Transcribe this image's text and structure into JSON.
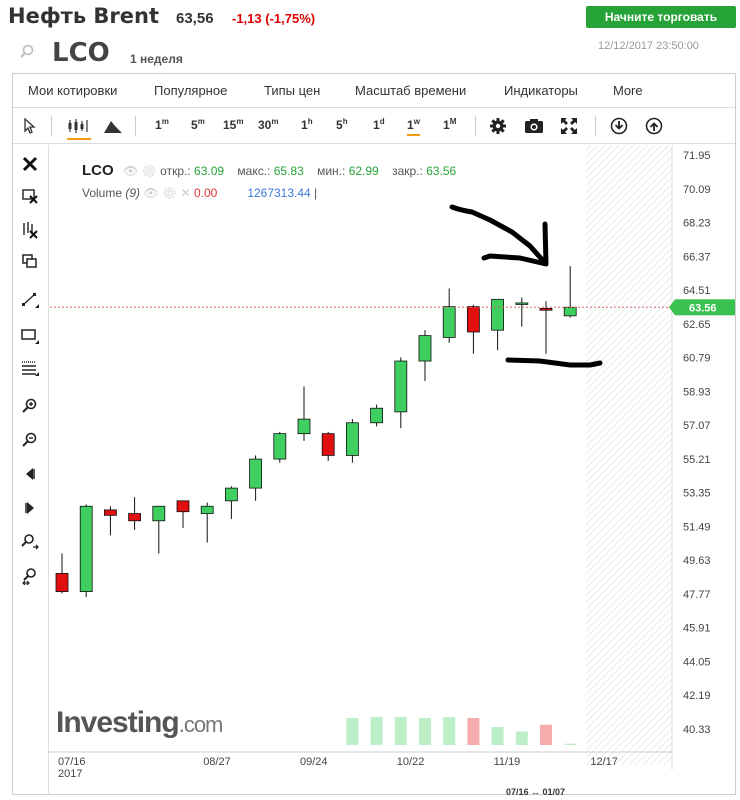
{
  "header": {
    "title": "Нефть Brent",
    "price": "63,56",
    "change": "-1,13 (-1,75%)",
    "trade_label": "Начните торговать"
  },
  "symbol_bar": {
    "symbol": "LCO",
    "interval": "1 неделя",
    "datetime": "12/12/2017 23:50:00"
  },
  "menu": {
    "items": [
      "Мои котировки",
      "Популярное",
      "Типы цен",
      "Масштаб времени",
      "Индикаторы",
      "More"
    ]
  },
  "toolbar": {
    "intervals": [
      {
        "label": "1",
        "sup": "m"
      },
      {
        "label": "5",
        "sup": "m"
      },
      {
        "label": "15",
        "sup": "m"
      },
      {
        "label": "30",
        "sup": "m"
      },
      {
        "label": "1",
        "sup": "h"
      },
      {
        "label": "5",
        "sup": "h"
      },
      {
        "label": "1",
        "sup": "d"
      },
      {
        "label": "1",
        "sup": "w"
      },
      {
        "label": "1",
        "sup": "M"
      }
    ],
    "active_interval": "1w"
  },
  "legend": {
    "symbol": "LCO",
    "open_label": "откр.:",
    "open": "63.09",
    "high_label": "макс.:",
    "high": "65.83",
    "low_label": "мин.:",
    "low": "62.99",
    "close_label": "закр.:",
    "close": "63.56",
    "volume_label": "Volume",
    "volume_period": "(9)",
    "volume_value": "0.00",
    "volume_ma": "1267313.44"
  },
  "watermark": {
    "brand": "Investing",
    "suffix": ".com"
  },
  "range_label": "07/16 ↔ 01/07",
  "colors": {
    "up": "#3ecf60",
    "down": "#e01010",
    "trade": "#26a337",
    "price_tag": "#39c24f"
  },
  "chart_data": {
    "type": "candlestick",
    "ylim": [
      40.33,
      71.95
    ],
    "y_ticks": [
      "71.95",
      "70.09",
      "68.23",
      "66.37",
      "64.51",
      "62.65",
      "60.79",
      "58.93",
      "57.07",
      "55.21",
      "53.35",
      "51.49",
      "49.63",
      "47.77",
      "45.91",
      "44.05",
      "42.19",
      "40.33"
    ],
    "x_ticks": [
      {
        "label": "07/16",
        "sub": "2017",
        "index": 0
      },
      {
        "label": "08/27",
        "index": 6
      },
      {
        "label": "09/24",
        "index": 10
      },
      {
        "label": "10/22",
        "index": 14
      },
      {
        "label": "11/19",
        "index": 18
      },
      {
        "label": "12/17",
        "index": 22
      }
    ],
    "last_price": "63.56",
    "candles": [
      {
        "o": 48.9,
        "h": 50.0,
        "l": 47.8,
        "c": 47.9
      },
      {
        "o": 47.9,
        "h": 52.7,
        "l": 47.6,
        "c": 52.6
      },
      {
        "o": 52.4,
        "h": 52.6,
        "l": 51.0,
        "c": 52.1
      },
      {
        "o": 52.2,
        "h": 53.1,
        "l": 51.3,
        "c": 51.8
      },
      {
        "o": 51.8,
        "h": 52.6,
        "l": 50.0,
        "c": 52.6
      },
      {
        "o": 52.9,
        "h": 52.9,
        "l": 51.4,
        "c": 52.3
      },
      {
        "o": 52.2,
        "h": 52.8,
        "l": 50.6,
        "c": 52.6
      },
      {
        "o": 52.9,
        "h": 53.7,
        "l": 51.9,
        "c": 53.6
      },
      {
        "o": 53.6,
        "h": 55.4,
        "l": 52.9,
        "c": 55.2
      },
      {
        "o": 55.2,
        "h": 56.7,
        "l": 55.0,
        "c": 56.6
      },
      {
        "o": 56.6,
        "h": 59.2,
        "l": 56.2,
        "c": 57.4
      },
      {
        "o": 56.6,
        "h": 56.7,
        "l": 55.1,
        "c": 55.4
      },
      {
        "o": 55.4,
        "h": 57.4,
        "l": 55.0,
        "c": 57.2
      },
      {
        "o": 57.2,
        "h": 58.2,
        "l": 57.0,
        "c": 58.0
      },
      {
        "o": 57.8,
        "h": 60.8,
        "l": 56.9,
        "c": 60.6
      },
      {
        "o": 60.6,
        "h": 62.3,
        "l": 59.5,
        "c": 62.0
      },
      {
        "o": 61.9,
        "h": 64.6,
        "l": 61.6,
        "c": 63.6
      },
      {
        "o": 63.6,
        "h": 63.7,
        "l": 61.0,
        "c": 62.2
      },
      {
        "o": 62.3,
        "h": 64.0,
        "l": 61.2,
        "c": 64.0
      },
      {
        "o": 63.8,
        "h": 64.1,
        "l": 62.5,
        "c": 63.8
      },
      {
        "o": 63.5,
        "h": 63.9,
        "l": 61.0,
        "c": 63.4
      },
      {
        "o": 63.09,
        "h": 65.83,
        "l": 62.99,
        "c": 63.56
      }
    ],
    "volume": [
      0,
      0,
      0,
      0,
      0,
      0,
      0,
      0,
      0,
      0,
      0,
      0,
      0.6,
      0.62,
      0.62,
      0.6,
      0.62,
      0.6,
      0.4,
      0.3,
      0.45,
      0.03
    ]
  }
}
